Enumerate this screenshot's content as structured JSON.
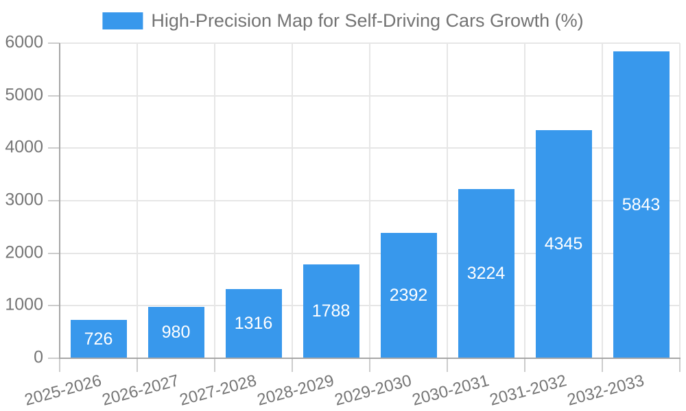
{
  "chart_data": {
    "type": "bar",
    "title": "High-Precision Map for Self-Driving Cars Growth (%)",
    "legend": [
      {
        "label": "High-Precision Map for Self-Driving Cars Growth (%)",
        "color": "#3898ec"
      }
    ],
    "legend_position": "top-center",
    "categories": [
      "2025-2026",
      "2026-2027",
      "2027-2028",
      "2028-2029",
      "2029-2030",
      "2030-2031",
      "2031-2032",
      "2032-2033"
    ],
    "values": [
      726,
      980,
      1316,
      1788,
      2392,
      3224,
      4345,
      5843
    ],
    "value_labels": [
      "726",
      "980",
      "1316",
      "1788",
      "2392",
      "3224",
      "4345",
      "5843"
    ],
    "value_label_position": "center-inside",
    "xlabel": "",
    "ylabel": "",
    "ylim": [
      0,
      6000
    ],
    "yticks": [
      0,
      1000,
      2000,
      3000,
      4000,
      5000,
      6000
    ],
    "ytick_labels": [
      "0",
      "1000",
      "2000",
      "3000",
      "4000",
      "5000",
      "6000"
    ],
    "xtick_label_rotation_deg": -15,
    "grid": true,
    "colors": {
      "bar": "#3898ec",
      "value_label": "#ffffff",
      "axis_text": "#757575",
      "title_text": "#737373",
      "gridline": "#e6e6e6",
      "axis_line": "#a6a6a6",
      "tick": "#cccccc",
      "background": "#ffffff"
    }
  }
}
